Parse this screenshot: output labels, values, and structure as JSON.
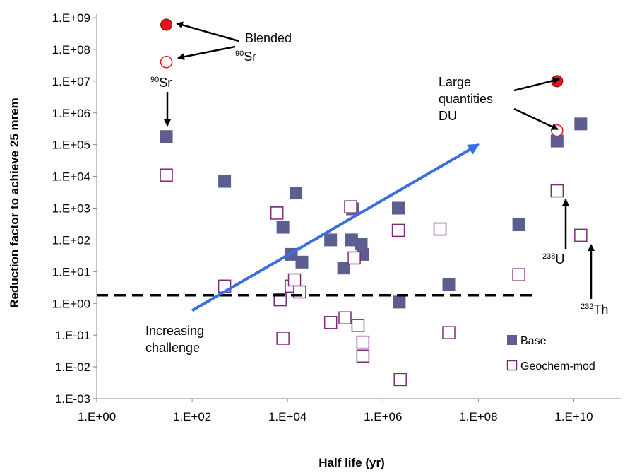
{
  "chart_data": {
    "type": "scatter",
    "title": "",
    "xlabel": "Half life (yr)",
    "ylabel": "Reduction factor to achieve 25 mrem",
    "x_scale": "log",
    "y_scale": "log",
    "xlim": [
      1,
      100000000000
    ],
    "ylim": [
      0.001,
      1000000000
    ],
    "x_ticks": [
      "1.E+00",
      "1.E+02",
      "1.E+04",
      "1.E+06",
      "1.E+08",
      "1.E+10"
    ],
    "y_ticks": [
      "1.E-03",
      "1.E-02",
      "1.E-01",
      "1.E+00",
      "1.E+01",
      "1.E+02",
      "1.E+03",
      "1.E+04",
      "1.E+05",
      "1.E+06",
      "1.E+07",
      "1.E+08",
      "1.E+09"
    ],
    "grid": false,
    "legend_position": "lower-right",
    "series": [
      {
        "name": "Base",
        "marker": "filled-square",
        "color": "#5b5e8f",
        "points": [
          [
            28.8,
            180000
          ],
          [
            480,
            7000
          ],
          [
            6000,
            750
          ],
          [
            8000,
            250
          ],
          [
            12000,
            35
          ],
          [
            15000,
            3000
          ],
          [
            20000,
            20
          ],
          [
            80000,
            100
          ],
          [
            150000,
            13
          ],
          [
            220000,
            100
          ],
          [
            230000,
            950
          ],
          [
            300000,
            0.2
          ],
          [
            350000,
            75
          ],
          [
            380000,
            35
          ],
          [
            2100000,
            1000
          ],
          [
            2200000,
            1.1
          ],
          [
            15700000,
            220
          ],
          [
            24000000,
            4
          ],
          [
            704000000,
            300
          ],
          [
            4470000000,
            130000
          ],
          [
            14000000000,
            450000
          ]
        ]
      },
      {
        "name": "Geochem-mod",
        "marker": "hollow-square",
        "color": "#7b2d7b",
        "points": [
          [
            28.8,
            11000
          ],
          [
            480,
            3.5
          ],
          [
            6000,
            700
          ],
          [
            7000,
            1.3
          ],
          [
            8000,
            0.08
          ],
          [
            12000,
            3.5
          ],
          [
            14000,
            5.5
          ],
          [
            18000,
            2.3
          ],
          [
            80000,
            0.25
          ],
          [
            160000,
            0.35
          ],
          [
            210000,
            1100
          ],
          [
            250000,
            27
          ],
          [
            300000,
            0.2
          ],
          [
            380000,
            0.06
          ],
          [
            380000,
            0.022
          ],
          [
            2100000,
            200
          ],
          [
            2300000,
            0.004
          ],
          [
            15700000,
            220
          ],
          [
            24000000,
            0.12
          ],
          [
            704000000,
            8
          ],
          [
            4470000000,
            3500
          ],
          [
            14000000000,
            140
          ]
        ]
      },
      {
        "name": "Blended",
        "marker": "filled-circle",
        "color": "#e8141c",
        "points": [
          [
            28.8,
            600000000
          ],
          [
            4470000000,
            10000000
          ]
        ]
      },
      {
        "name": "90Sr / DU",
        "marker": "hollow-circle",
        "color": "#e8141c",
        "points": [
          [
            28.8,
            40000000
          ],
          [
            4470000000,
            280000
          ]
        ]
      }
    ],
    "reference_line": {
      "y": 1.8,
      "style": "dashed",
      "color": "#000000"
    },
    "trend_arrow": {
      "from": [
        100,
        0.6
      ],
      "to": [
        100000000,
        100000
      ],
      "color": "#3a6fe0",
      "label_lines": [
        "Increasing",
        "challenge"
      ]
    },
    "annotations": {
      "blended": "Blended",
      "sr90_top_sup": "90",
      "sr90_top_main": "Sr",
      "sr90_left_sup": "90",
      "sr90_left_main": "Sr",
      "du_lines": [
        "Large",
        "quantities",
        "DU"
      ],
      "u238_sup": "238",
      "u238_main": "U",
      "th232_sup": "232",
      "th232_main": "Th",
      "increasing_lines": [
        "Increasing",
        "challenge"
      ]
    },
    "legend": [
      "Base",
      "Geochem-mod"
    ]
  }
}
